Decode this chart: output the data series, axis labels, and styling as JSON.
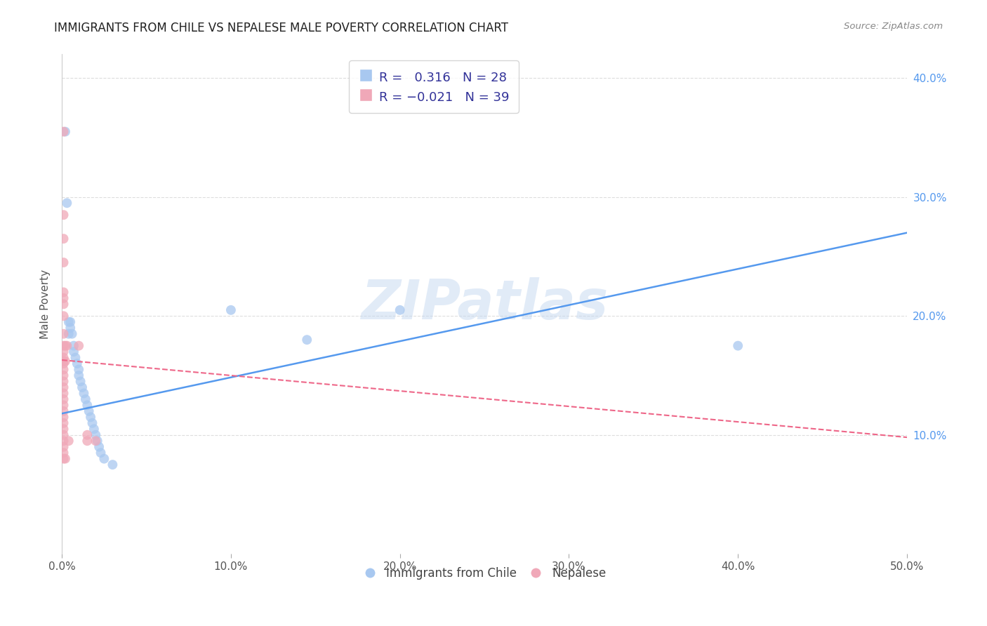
{
  "title": "IMMIGRANTS FROM CHILE VS NEPALESE MALE POVERTY CORRELATION CHART",
  "source": "Source: ZipAtlas.com",
  "ylabel": "Male Poverty",
  "watermark": "ZIPatlas",
  "x_min": 0.0,
  "x_max": 0.5,
  "y_min": 0.0,
  "y_max": 0.42,
  "y_ticks": [
    0.1,
    0.2,
    0.3,
    0.4
  ],
  "y_tick_labels": [
    "10.0%",
    "20.0%",
    "30.0%",
    "40.0%"
  ],
  "x_ticks": [
    0.0,
    0.1,
    0.2,
    0.3,
    0.4,
    0.5
  ],
  "x_tick_labels": [
    "0.0%",
    "10.0%",
    "20.0%",
    "30.0%",
    "40.0%",
    "50.0%"
  ],
  "blue_color": "#A8C8F0",
  "pink_color": "#F0A8B8",
  "blue_line_color": "#5599EE",
  "pink_line_color": "#EE6688",
  "blue_scatter": [
    [
      0.002,
      0.355
    ],
    [
      0.003,
      0.295
    ],
    [
      0.004,
      0.195
    ],
    [
      0.004,
      0.185
    ],
    [
      0.005,
      0.195
    ],
    [
      0.005,
      0.19
    ],
    [
      0.006,
      0.185
    ],
    [
      0.007,
      0.175
    ],
    [
      0.007,
      0.17
    ],
    [
      0.008,
      0.165
    ],
    [
      0.009,
      0.16
    ],
    [
      0.01,
      0.155
    ],
    [
      0.01,
      0.15
    ],
    [
      0.011,
      0.145
    ],
    [
      0.012,
      0.14
    ],
    [
      0.013,
      0.135
    ],
    [
      0.014,
      0.13
    ],
    [
      0.015,
      0.125
    ],
    [
      0.016,
      0.12
    ],
    [
      0.017,
      0.115
    ],
    [
      0.018,
      0.11
    ],
    [
      0.019,
      0.105
    ],
    [
      0.02,
      0.1
    ],
    [
      0.021,
      0.095
    ],
    [
      0.022,
      0.09
    ],
    [
      0.023,
      0.085
    ],
    [
      0.025,
      0.08
    ],
    [
      0.03,
      0.075
    ],
    [
      0.1,
      0.205
    ],
    [
      0.145,
      0.18
    ],
    [
      0.2,
      0.205
    ],
    [
      0.4,
      0.175
    ]
  ],
  "pink_scatter": [
    [
      0.001,
      0.355
    ],
    [
      0.001,
      0.285
    ],
    [
      0.001,
      0.265
    ],
    [
      0.001,
      0.245
    ],
    [
      0.001,
      0.22
    ],
    [
      0.001,
      0.215
    ],
    [
      0.001,
      0.21
    ],
    [
      0.001,
      0.2
    ],
    [
      0.001,
      0.185
    ],
    [
      0.001,
      0.175
    ],
    [
      0.001,
      0.17
    ],
    [
      0.001,
      0.165
    ],
    [
      0.001,
      0.162
    ],
    [
      0.001,
      0.16
    ],
    [
      0.001,
      0.155
    ],
    [
      0.001,
      0.15
    ],
    [
      0.001,
      0.145
    ],
    [
      0.001,
      0.14
    ],
    [
      0.001,
      0.135
    ],
    [
      0.001,
      0.13
    ],
    [
      0.001,
      0.125
    ],
    [
      0.001,
      0.12
    ],
    [
      0.001,
      0.115
    ],
    [
      0.001,
      0.11
    ],
    [
      0.001,
      0.105
    ],
    [
      0.001,
      0.1
    ],
    [
      0.001,
      0.095
    ],
    [
      0.001,
      0.09
    ],
    [
      0.001,
      0.085
    ],
    [
      0.001,
      0.08
    ],
    [
      0.002,
      0.175
    ],
    [
      0.002,
      0.162
    ],
    [
      0.002,
      0.08
    ],
    [
      0.003,
      0.175
    ],
    [
      0.004,
      0.095
    ],
    [
      0.01,
      0.175
    ],
    [
      0.015,
      0.095
    ],
    [
      0.015,
      0.1
    ],
    [
      0.02,
      0.095
    ]
  ],
  "blue_trendline_x": [
    0.0,
    0.5
  ],
  "blue_trendline_y": [
    0.118,
    0.27
  ],
  "pink_trendline_x": [
    0.0,
    0.5
  ],
  "pink_trendline_y": [
    0.163,
    0.098
  ]
}
